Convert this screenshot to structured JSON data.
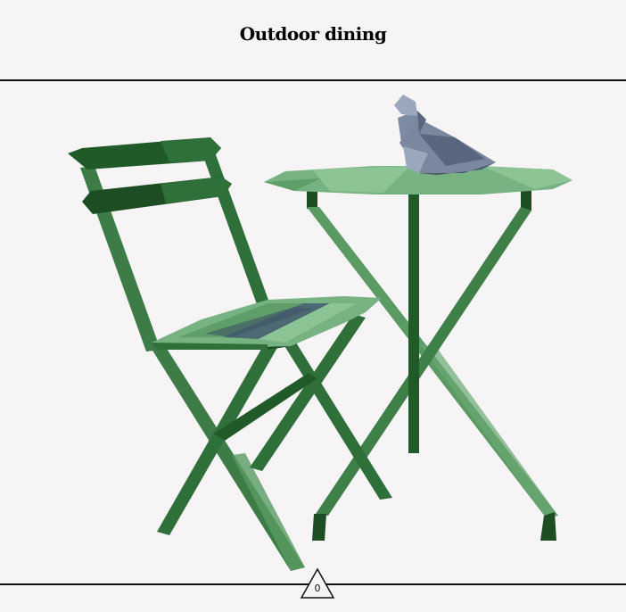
{
  "header": {
    "title": "Outdoor dining"
  },
  "badge": {
    "value": "0",
    "icon": "triangle-icon"
  },
  "illustration": {
    "subjects": [
      "chair",
      "table",
      "pigeon"
    ],
    "colors": {
      "dark_green": "#1c4d23",
      "mid_green": "#2f6f3a",
      "light_green": "#5f9e69",
      "pale_green": "#8cc496",
      "pigeon_light": "#9aa7bd",
      "pigeon_dark": "#4b5770"
    }
  }
}
